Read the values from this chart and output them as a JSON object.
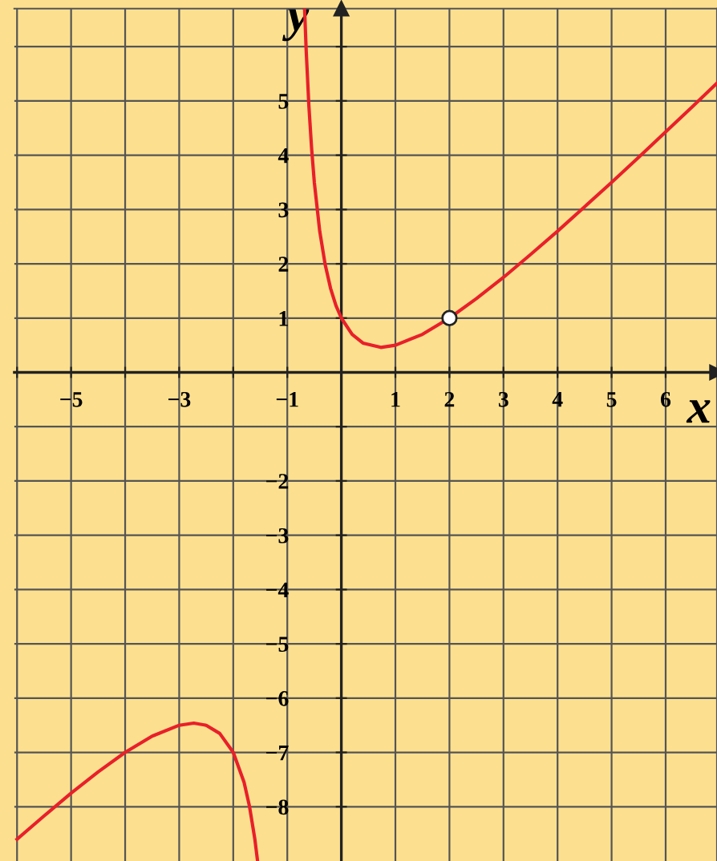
{
  "chart_data": {
    "type": "line",
    "xlabel": "x",
    "ylabel": "y",
    "xlim": [
      -6.05,
      6.95
    ],
    "ylim": [
      -9.0,
      6.7
    ],
    "xticks": [
      {
        "value": -6,
        "label": null
      },
      {
        "value": -5,
        "label": "−5"
      },
      {
        "value": -4,
        "label": null
      },
      {
        "value": -3,
        "label": "−3"
      },
      {
        "value": -2,
        "label": null
      },
      {
        "value": -1,
        "label": "−1"
      },
      {
        "value": 0,
        "label": null
      },
      1,
      2,
      3,
      4,
      5,
      6
    ],
    "yticks": [
      {
        "value": -8,
        "label": "−8"
      },
      {
        "value": -7,
        "label": "−7"
      },
      {
        "value": -6,
        "label": "−6"
      },
      {
        "value": -5,
        "label": "−5"
      },
      {
        "value": -4,
        "label": "−4"
      },
      {
        "value": -3,
        "label": "−3"
      },
      {
        "value": -2,
        "label": "−2"
      },
      {
        "value": -1,
        "label": null
      },
      {
        "value": 0,
        "label": null
      },
      1,
      2,
      3,
      4,
      5,
      {
        "value": 6,
        "label": null
      }
    ],
    "grid": true,
    "series": [
      {
        "color": "#e8202a",
        "x": [
          -6.0,
          -5.5,
          -5.0,
          -4.5,
          -4.0,
          -3.5,
          -3.0,
          -2.73,
          -2.5,
          -2.25,
          -2.0,
          -1.8,
          -1.7,
          -1.6,
          -1.55,
          null,
          -0.68,
          -0.65,
          -0.6,
          -0.55,
          -0.5,
          -0.4,
          -0.3,
          -0.2,
          -0.1,
          0,
          0.2,
          0.4,
          0.73,
          1,
          1.5,
          2,
          2.5,
          3,
          3.5,
          4,
          4.5,
          5,
          5.5,
          6,
          6.5,
          6.95
        ],
        "values": [
          -8.6,
          -8.17,
          -7.75,
          -7.36,
          -7.0,
          -6.7,
          -6.5,
          -6.46,
          -6.5,
          -6.65,
          -7.0,
          -7.55,
          -7.99,
          -8.6,
          -9.0,
          null,
          6.7,
          5.92,
          4.9,
          4.12,
          3.5,
          2.6,
          1.99,
          1.55,
          1.23,
          1,
          0.7,
          0.54,
          0.46,
          0.5,
          0.7,
          1,
          1.36,
          1.75,
          2.17,
          2.6,
          3.05,
          3.5,
          3.96,
          4.43,
          4.9,
          5.33
        ]
      },
      {
        "type": "scatter",
        "color": "#ffffff",
        "marker": "circle",
        "x": [
          2
        ],
        "values": [
          1
        ]
      }
    ]
  }
}
